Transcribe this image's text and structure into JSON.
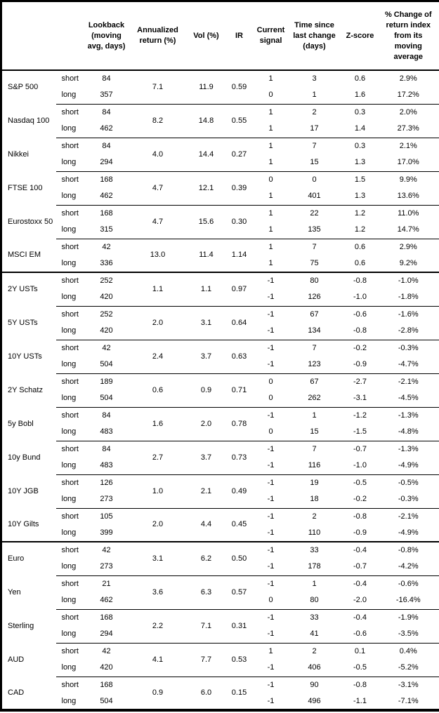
{
  "table": {
    "columns": [
      "Lookback\n(moving\navg, days)",
      "Annualized\nreturn (%)",
      "Vol (%)",
      "IR",
      "Current\nsignal",
      "Time since\nlast change\n(days)",
      "Z-score",
      "% Change of\nreturn index\nfrom its\nmoving\naverage"
    ],
    "leg_labels": {
      "short": "short",
      "long": "long"
    },
    "rows": [
      {
        "name": "S&P 500",
        "section_end": false,
        "ret": "7.1",
        "vol": "11.9",
        "ir": "0.59",
        "short": {
          "lookback": "84",
          "signal": "1",
          "time": "3",
          "z": "0.6",
          "pct": "2.9%"
        },
        "long": {
          "lookback": "357",
          "signal": "0",
          "time": "1",
          "z": "1.6",
          "pct": "17.2%"
        }
      },
      {
        "name": "Nasdaq 100",
        "section_end": false,
        "ret": "8.2",
        "vol": "14.8",
        "ir": "0.55",
        "short": {
          "lookback": "84",
          "signal": "1",
          "time": "2",
          "z": "0.3",
          "pct": "2.0%"
        },
        "long": {
          "lookback": "462",
          "signal": "1",
          "time": "17",
          "z": "1.4",
          "pct": "27.3%"
        }
      },
      {
        "name": "Nikkei",
        "section_end": false,
        "ret": "4.0",
        "vol": "14.4",
        "ir": "0.27",
        "short": {
          "lookback": "84",
          "signal": "1",
          "time": "7",
          "z": "0.3",
          "pct": "2.1%"
        },
        "long": {
          "lookback": "294",
          "signal": "1",
          "time": "15",
          "z": "1.3",
          "pct": "17.0%"
        }
      },
      {
        "name": "FTSE 100",
        "section_end": false,
        "ret": "4.7",
        "vol": "12.1",
        "ir": "0.39",
        "short": {
          "lookback": "168",
          "signal": "0",
          "time": "0",
          "z": "1.5",
          "pct": "9.9%"
        },
        "long": {
          "lookback": "462",
          "signal": "1",
          "time": "401",
          "z": "1.3",
          "pct": "13.6%"
        }
      },
      {
        "name": "Eurostoxx 50",
        "section_end": false,
        "ret": "4.7",
        "vol": "15.6",
        "ir": "0.30",
        "short": {
          "lookback": "168",
          "signal": "1",
          "time": "22",
          "z": "1.2",
          "pct": "11.0%"
        },
        "long": {
          "lookback": "315",
          "signal": "1",
          "time": "135",
          "z": "1.2",
          "pct": "14.7%"
        }
      },
      {
        "name": "MSCI EM",
        "section_end": true,
        "ret": "13.0",
        "vol": "11.4",
        "ir": "1.14",
        "short": {
          "lookback": "42",
          "signal": "1",
          "time": "7",
          "z": "0.6",
          "pct": "2.9%"
        },
        "long": {
          "lookback": "336",
          "signal": "1",
          "time": "75",
          "z": "0.6",
          "pct": "9.2%"
        }
      },
      {
        "name": "2Y USTs",
        "section_end": false,
        "ret": "1.1",
        "vol": "1.1",
        "ir": "0.97",
        "short": {
          "lookback": "252",
          "signal": "-1",
          "time": "80",
          "z": "-0.8",
          "pct": "-1.0%"
        },
        "long": {
          "lookback": "420",
          "signal": "-1",
          "time": "126",
          "z": "-1.0",
          "pct": "-1.8%"
        }
      },
      {
        "name": "5Y USTs",
        "section_end": false,
        "ret": "2.0",
        "vol": "3.1",
        "ir": "0.64",
        "short": {
          "lookback": "252",
          "signal": "-1",
          "time": "67",
          "z": "-0.6",
          "pct": "-1.6%"
        },
        "long": {
          "lookback": "420",
          "signal": "-1",
          "time": "134",
          "z": "-0.8",
          "pct": "-2.8%"
        }
      },
      {
        "name": "10Y USTs",
        "section_end": false,
        "ret": "2.4",
        "vol": "3.7",
        "ir": "0.63",
        "short": {
          "lookback": "42",
          "signal": "-1",
          "time": "7",
          "z": "-0.2",
          "pct": "-0.3%"
        },
        "long": {
          "lookback": "504",
          "signal": "-1",
          "time": "123",
          "z": "-0.9",
          "pct": "-4.7%"
        }
      },
      {
        "name": "2Y Schatz",
        "section_end": false,
        "ret": "0.6",
        "vol": "0.9",
        "ir": "0.71",
        "short": {
          "lookback": "189",
          "signal": "0",
          "time": "67",
          "z": "-2.7",
          "pct": "-2.1%"
        },
        "long": {
          "lookback": "504",
          "signal": "0",
          "time": "262",
          "z": "-3.1",
          "pct": "-4.5%"
        }
      },
      {
        "name": "5y Bobl",
        "section_end": false,
        "ret": "1.6",
        "vol": "2.0",
        "ir": "0.78",
        "short": {
          "lookback": "84",
          "signal": "-1",
          "time": "1",
          "z": "-1.2",
          "pct": "-1.3%"
        },
        "long": {
          "lookback": "483",
          "signal": "0",
          "time": "15",
          "z": "-1.5",
          "pct": "-4.8%"
        }
      },
      {
        "name": "10y Bund",
        "section_end": false,
        "ret": "2.7",
        "vol": "3.7",
        "ir": "0.73",
        "short": {
          "lookback": "84",
          "signal": "-1",
          "time": "7",
          "z": "-0.7",
          "pct": "-1.3%"
        },
        "long": {
          "lookback": "483",
          "signal": "-1",
          "time": "116",
          "z": "-1.0",
          "pct": "-4.9%"
        }
      },
      {
        "name": "10Y JGB",
        "section_end": false,
        "ret": "1.0",
        "vol": "2.1",
        "ir": "0.49",
        "short": {
          "lookback": "126",
          "signal": "-1",
          "time": "19",
          "z": "-0.5",
          "pct": "-0.5%"
        },
        "long": {
          "lookback": "273",
          "signal": "-1",
          "time": "18",
          "z": "-0.2",
          "pct": "-0.3%"
        }
      },
      {
        "name": "10Y Gilts",
        "section_end": true,
        "ret": "2.0",
        "vol": "4.4",
        "ir": "0.45",
        "short": {
          "lookback": "105",
          "signal": "-1",
          "time": "2",
          "z": "-0.8",
          "pct": "-2.1%"
        },
        "long": {
          "lookback": "399",
          "signal": "-1",
          "time": "110",
          "z": "-0.9",
          "pct": "-4.9%"
        }
      },
      {
        "name": "Euro",
        "section_end": false,
        "ret": "3.1",
        "vol": "6.2",
        "ir": "0.50",
        "short": {
          "lookback": "42",
          "signal": "-1",
          "time": "33",
          "z": "-0.4",
          "pct": "-0.8%"
        },
        "long": {
          "lookback": "273",
          "signal": "-1",
          "time": "178",
          "z": "-0.7",
          "pct": "-4.2%"
        }
      },
      {
        "name": "Yen",
        "section_end": false,
        "ret": "3.6",
        "vol": "6.3",
        "ir": "0.57",
        "short": {
          "lookback": "21",
          "signal": "-1",
          "time": "1",
          "z": "-0.4",
          "pct": "-0.6%"
        },
        "long": {
          "lookback": "462",
          "signal": "0",
          "time": "80",
          "z": "-2.0",
          "pct": "-16.4%"
        }
      },
      {
        "name": "Sterling",
        "section_end": false,
        "ret": "2.2",
        "vol": "7.1",
        "ir": "0.31",
        "short": {
          "lookback": "168",
          "signal": "-1",
          "time": "33",
          "z": "-0.4",
          "pct": "-1.9%"
        },
        "long": {
          "lookback": "294",
          "signal": "-1",
          "time": "41",
          "z": "-0.6",
          "pct": "-3.5%"
        }
      },
      {
        "name": "AUD",
        "section_end": false,
        "ret": "4.1",
        "vol": "7.7",
        "ir": "0.53",
        "short": {
          "lookback": "42",
          "signal": "1",
          "time": "2",
          "z": "0.1",
          "pct": "0.4%"
        },
        "long": {
          "lookback": "420",
          "signal": "-1",
          "time": "406",
          "z": "-0.5",
          "pct": "-5.2%"
        }
      },
      {
        "name": "CAD",
        "section_end": false,
        "ret": "0.9",
        "vol": "6.0",
        "ir": "0.15",
        "short": {
          "lookback": "168",
          "signal": "-1",
          "time": "90",
          "z": "-0.8",
          "pct": "-3.1%"
        },
        "long": {
          "lookback": "504",
          "signal": "-1",
          "time": "496",
          "z": "-1.1",
          "pct": "-7.1%"
        }
      }
    ]
  },
  "colors": {
    "border": "#000000",
    "text": "#000000",
    "background": "#ffffff"
  }
}
